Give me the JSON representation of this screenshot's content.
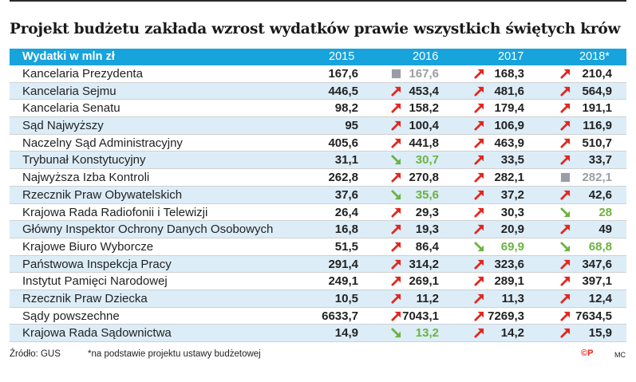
{
  "title": "Projekt budżetu zakłada wzrost wydatków prawie wszystkich świętych krów",
  "colors": {
    "header": "#17a3dc",
    "alt_row": "#dcedf8",
    "up": "#e2271e",
    "same": "#9a9ea4",
    "down": "#6cb33f"
  },
  "chart_data": {
    "type": "table",
    "title": "Projekt budżetu zakłada wzrost wydatków prawie wszystkich świętych krów",
    "row_header": "Wydatki w mln zł",
    "columns": [
      "2015",
      "2016",
      "2017",
      "2018*"
    ],
    "rows": [
      {
        "name": "Kancelaria Prezydenta",
        "values": [
          "167,6",
          "167,6",
          "168,3",
          "210,4"
        ],
        "trend": [
          null,
          "same",
          "up",
          "up"
        ]
      },
      {
        "name": "Kancelaria Sejmu",
        "values": [
          "446,5",
          "453,4",
          "481,6",
          "564,9"
        ],
        "trend": [
          null,
          "up",
          "up",
          "up"
        ]
      },
      {
        "name": "Kancelaria Senatu",
        "values": [
          "98,2",
          "158,2",
          "179,4",
          "191,1"
        ],
        "trend": [
          null,
          "up",
          "up",
          "up"
        ]
      },
      {
        "name": "Sąd Najwyższy",
        "values": [
          "95",
          "100,4",
          "106,9",
          "116,9"
        ],
        "trend": [
          null,
          "up",
          "up",
          "up"
        ]
      },
      {
        "name": "Naczelny Sąd Administracyjny",
        "values": [
          "405,6",
          "441,8",
          "463,9",
          "510,7"
        ],
        "trend": [
          null,
          "up",
          "up",
          "up"
        ]
      },
      {
        "name": "Trybunał Konstytucyjny",
        "values": [
          "31,1",
          "30,7",
          "33,5",
          "33,7"
        ],
        "trend": [
          null,
          "down",
          "up",
          "up"
        ]
      },
      {
        "name": "Najwyższa Izba Kontroli",
        "values": [
          "262,8",
          "270,8",
          "282,1",
          "282,1"
        ],
        "trend": [
          null,
          "up",
          "up",
          "same"
        ]
      },
      {
        "name": "Rzecznik Praw Obywatelskich",
        "values": [
          "37,6",
          "35,6",
          "37,2",
          "42,6"
        ],
        "trend": [
          null,
          "down",
          "up",
          "up"
        ]
      },
      {
        "name": "Krajowa Rada Radiofonii i Telewizji",
        "values": [
          "26,4",
          "29,3",
          "30,3",
          "28"
        ],
        "trend": [
          null,
          "up",
          "up",
          "down"
        ]
      },
      {
        "name": "Główny Inspektor Ochrony Danych Osobowych",
        "values": [
          "16,8",
          "19,3",
          "20,9",
          "49"
        ],
        "trend": [
          null,
          "up",
          "up",
          "up"
        ]
      },
      {
        "name": "Krajowe Biuro Wyborcze",
        "values": [
          "51,5",
          "86,4",
          "69,9",
          "68,8"
        ],
        "trend": [
          null,
          "up",
          "down",
          "down"
        ]
      },
      {
        "name": "Państwowa Inspekcja Pracy",
        "values": [
          "291,4",
          "314,2",
          "323,6",
          "347,6"
        ],
        "trend": [
          null,
          "up",
          "up",
          "up"
        ]
      },
      {
        "name": "Instytut Pamięci Narodowej",
        "values": [
          "249,1",
          "269,1",
          "289,1",
          "397,1"
        ],
        "trend": [
          null,
          "up",
          "up",
          "up"
        ]
      },
      {
        "name": "Rzecznik Praw Dziecka",
        "values": [
          "10,5",
          "11,2",
          "11,3",
          "12,4"
        ],
        "trend": [
          null,
          "up",
          "up",
          "up"
        ]
      },
      {
        "name": "Sądy powszechne",
        "values": [
          "6633,7",
          "7043,1",
          "7269,3",
          "7634,5"
        ],
        "trend": [
          null,
          "up",
          "up",
          "up"
        ]
      },
      {
        "name": "Krajowa Rada Sądownictwa",
        "values": [
          "14,9",
          "13,2",
          "14,2",
          "15,9"
        ],
        "trend": [
          null,
          "down",
          "up",
          "up"
        ]
      }
    ]
  },
  "footer": {
    "source": "Źródło: GUS",
    "note": "*na podstawie projektu ustawy budżetowej",
    "logo": "©P",
    "author": "MC"
  }
}
